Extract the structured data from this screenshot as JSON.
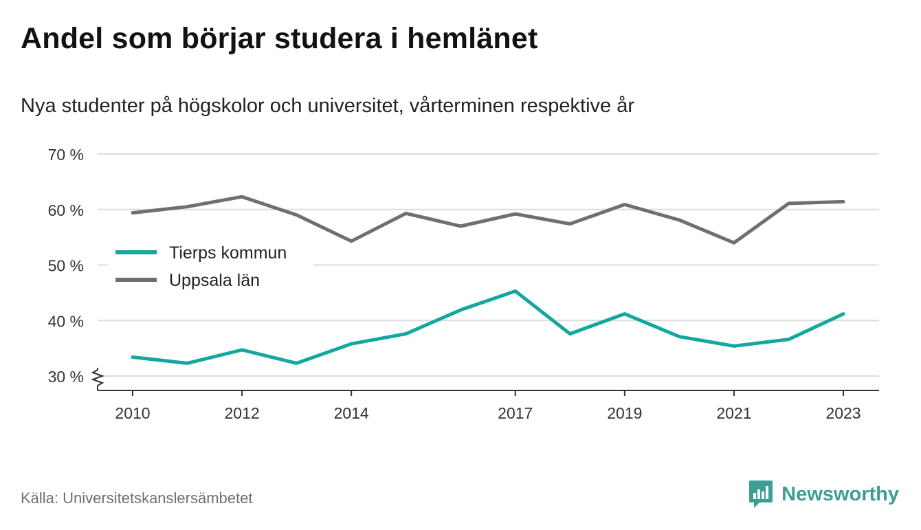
{
  "header": {
    "title": "Andel som börjar studera i hemlänet",
    "subtitle": "Nya studenter på högskolor och universitet, vårterminen respektive år"
  },
  "footer": {
    "source": "Källa: Universitetskanslersämbetet",
    "brand": "Newsworthy",
    "brand_icon": "bar-chart-speech-bubble-icon"
  },
  "colors": {
    "tierp": "#13a89e",
    "uppsala": "#6e6e76",
    "grid": "#dcdcdc",
    "axis": "#333333",
    "brand": "#3d9e93"
  },
  "chart_data": {
    "type": "line",
    "x": [
      2010,
      2011,
      2012,
      2013,
      2014,
      2015,
      2016,
      2017,
      2018,
      2019,
      2020,
      2021,
      2022,
      2023
    ],
    "xticks": [
      2010,
      2012,
      2014,
      2017,
      2019,
      2021,
      2023
    ],
    "xtick_labels": [
      "2010",
      "2012",
      "2014",
      "2017",
      "2019",
      "2021",
      "2023"
    ],
    "yticks": [
      30,
      40,
      50,
      60,
      70
    ],
    "ytick_labels": [
      "30 %",
      "40 %",
      "50 %",
      "60 %",
      "70 %"
    ],
    "ylim": [
      30,
      70
    ],
    "axis_break": true,
    "grid": true,
    "legend_position": "middle-left",
    "series": [
      {
        "name": "Tierps kommun",
        "color": "#13a89e",
        "values": [
          33.4,
          32.3,
          34.7,
          32.3,
          35.8,
          37.6,
          41.9,
          45.3,
          37.6,
          41.2,
          37.1,
          35.4,
          36.6,
          41.2
        ]
      },
      {
        "name": "Uppsala län",
        "color": "#6e6e76",
        "values": [
          59.4,
          60.5,
          62.3,
          59.0,
          54.3,
          59.3,
          57.0,
          59.2,
          57.4,
          60.9,
          58.1,
          54.0,
          61.1,
          61.4
        ]
      }
    ]
  }
}
